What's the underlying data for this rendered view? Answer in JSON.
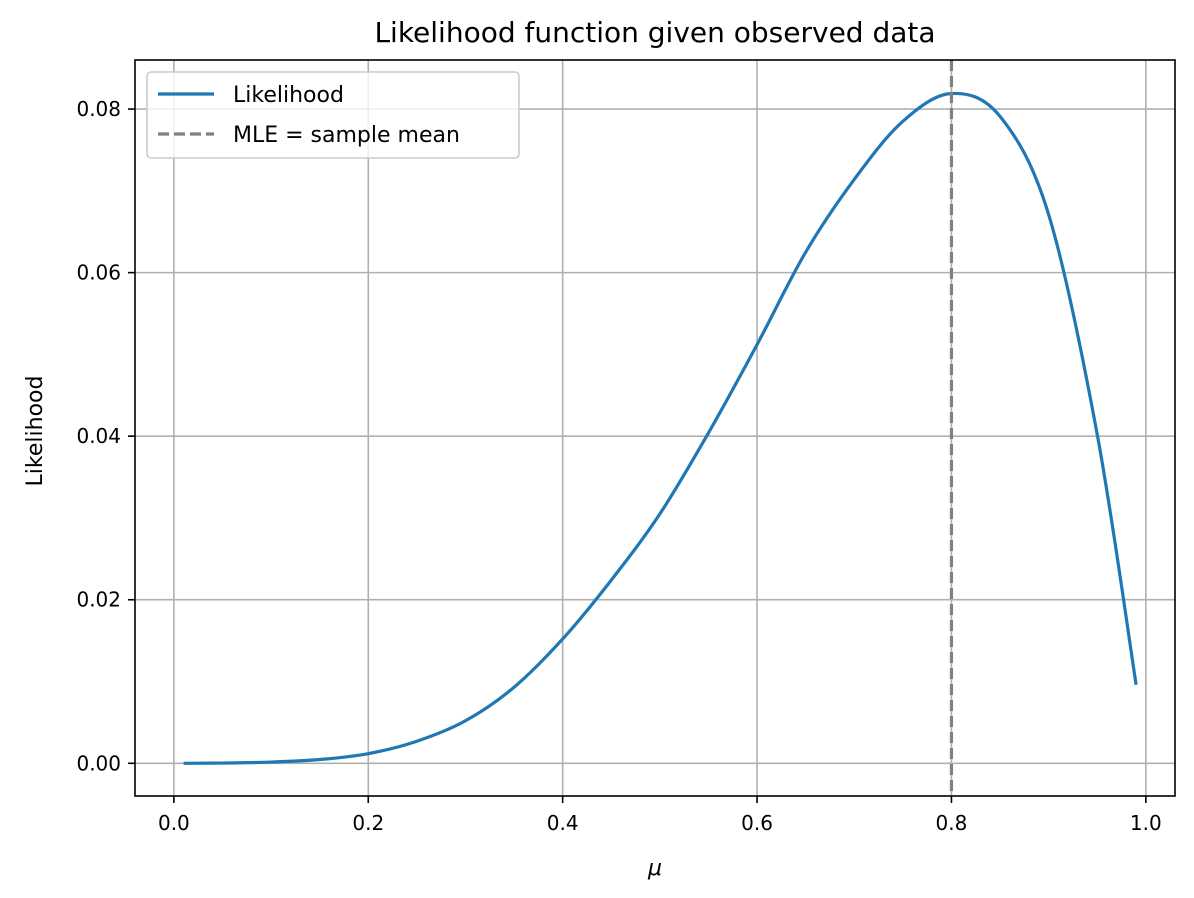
{
  "chart_data": {
    "type": "line",
    "title": "Likelihood function given observed data",
    "xlabel": "μ",
    "ylabel": "Likelihood",
    "xlim": [
      -0.04,
      1.03
    ],
    "ylim": [
      -0.004,
      0.086
    ],
    "xticks": [
      0.0,
      0.2,
      0.4,
      0.6,
      0.8,
      1.0
    ],
    "xtick_labels": [
      "0.0",
      "0.2",
      "0.4",
      "0.6",
      "0.8",
      "1.0"
    ],
    "yticks": [
      0.0,
      0.02,
      0.04,
      0.06,
      0.08
    ],
    "ytick_labels": [
      "0.00",
      "0.02",
      "0.04",
      "0.06",
      "0.08"
    ],
    "grid": true,
    "legend_position": "upper-left",
    "series": [
      {
        "name": "Likelihood",
        "color": "#1f77b4",
        "style": "solid",
        "x": [
          0.01,
          0.05,
          0.1,
          0.15,
          0.2,
          0.25,
          0.3,
          0.35,
          0.4,
          0.45,
          0.5,
          0.55,
          0.6,
          0.65,
          0.7,
          0.75,
          0.8,
          0.85,
          0.9,
          0.95,
          0.99
        ],
        "y": [
          0.0,
          3e-05,
          0.00015,
          0.00046,
          0.00118,
          0.0027,
          0.0052,
          0.0093,
          0.0152,
          0.0224,
          0.0305,
          0.0404,
          0.0512,
          0.0625,
          0.0714,
          0.0785,
          0.0819,
          0.0791,
          0.0671,
          0.0402,
          0.0096
        ]
      }
    ],
    "reference_lines": [
      {
        "name": "MLE = sample mean",
        "orientation": "vertical",
        "x": 0.8,
        "color": "#808080",
        "style": "dashed"
      }
    ]
  }
}
